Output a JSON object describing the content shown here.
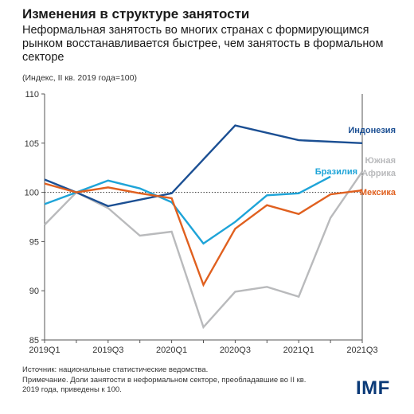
{
  "title": "Изменения в структуре занятости",
  "subtitle": "Неформальная занятость во многих странах с формирующимся рынком восстанавливается быстрее, чем занятость в формальном секторе",
  "index_note": "(Индекс, II кв. 2019 года=100)",
  "notes": {
    "source": "Источник: национальные статистические ведомства.",
    "note": "Примечание. Доли занятости в неформальном секторе, преобладавшие во II кв. 2019 года, приведены к 100."
  },
  "logo": "IMF",
  "chart_data": {
    "type": "line",
    "x": [
      "2019Q1",
      "2019Q2",
      "2019Q3",
      "2019Q4",
      "2020Q1",
      "2020Q2",
      "2020Q3",
      "2020Q4",
      "2021Q1",
      "2021Q2",
      "2021Q3"
    ],
    "x_tick_labels": [
      "2019Q1",
      "2019Q3",
      "2020Q1",
      "2020Q3",
      "2021Q1",
      "2021Q3"
    ],
    "ylim": [
      85,
      110
    ],
    "y_ticks": [
      85,
      90,
      95,
      100,
      105,
      110
    ],
    "reference_line": 100,
    "grid": false,
    "series": [
      {
        "name": "Индонезия",
        "color": "#1b4f93",
        "values": [
          101.3,
          100.0,
          98.6,
          null,
          99.9,
          null,
          106.8,
          null,
          105.3,
          null,
          105.0
        ]
      },
      {
        "name": "Бразилия",
        "color": "#1ea4d8",
        "values": [
          98.8,
          100.0,
          101.2,
          100.4,
          99.0,
          94.8,
          97.0,
          99.7,
          99.9,
          101.6,
          null
        ]
      },
      {
        "name": "Мексика",
        "color": "#e0601f",
        "values": [
          100.9,
          100.0,
          100.5,
          99.9,
          99.4,
          90.6,
          96.3,
          98.7,
          97.8,
          99.8,
          100.2
        ]
      },
      {
        "name": "Южная Африка",
        "color": "#b9babc",
        "values": [
          96.7,
          100.0,
          98.4,
          95.6,
          96.0,
          86.3,
          89.9,
          90.4,
          89.4,
          97.4,
          102.1
        ]
      }
    ],
    "series_labels": [
      {
        "text": "Индонезия",
        "color": "#1b4f93"
      },
      {
        "text": "Бразилия",
        "color": "#1ea4d8"
      },
      {
        "text": "Южная",
        "color": "#b9babc"
      },
      {
        "text": "Африка",
        "color": "#b9babc"
      },
      {
        "text": "Мексика",
        "color": "#e0601f"
      }
    ]
  }
}
